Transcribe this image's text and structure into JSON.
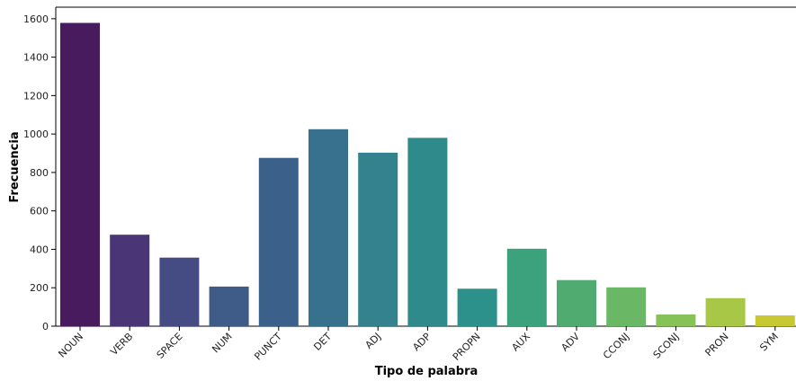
{
  "chart_data": {
    "type": "bar",
    "title": "",
    "xlabel": "Tipo de palabra",
    "ylabel": "Frecuencia",
    "categories": [
      "NOUN",
      "VERB",
      "SPACE",
      "NUM",
      "PUNCT",
      "DET",
      "ADJ",
      "ADP",
      "PROPN",
      "AUX",
      "ADV",
      "CCONJ",
      "SCONJ",
      "PRON",
      "SYM"
    ],
    "values": [
      1578,
      476,
      357,
      206,
      876,
      1025,
      903,
      980,
      195,
      403,
      240,
      202,
      61,
      146,
      56
    ],
    "ylim": [
      0,
      1660
    ],
    "yticks": [
      0,
      200,
      400,
      600,
      800,
      1000,
      1200,
      1400,
      1600
    ],
    "ytick_labels": [
      "0",
      "200",
      "400",
      "600",
      "800",
      "1000",
      "1200",
      "1400",
      "1600"
    ],
    "colors": [
      "#481a5e",
      "#4a3577",
      "#454b83",
      "#3f5b87",
      "#3b608a",
      "#37718d",
      "#33828d",
      "#2f8a8b",
      "#2b918a",
      "#3ca17d",
      "#4fab6f",
      "#6ab866",
      "#86c257",
      "#a8c746",
      "#c8c833"
    ],
    "grid": false,
    "legend": "none"
  }
}
